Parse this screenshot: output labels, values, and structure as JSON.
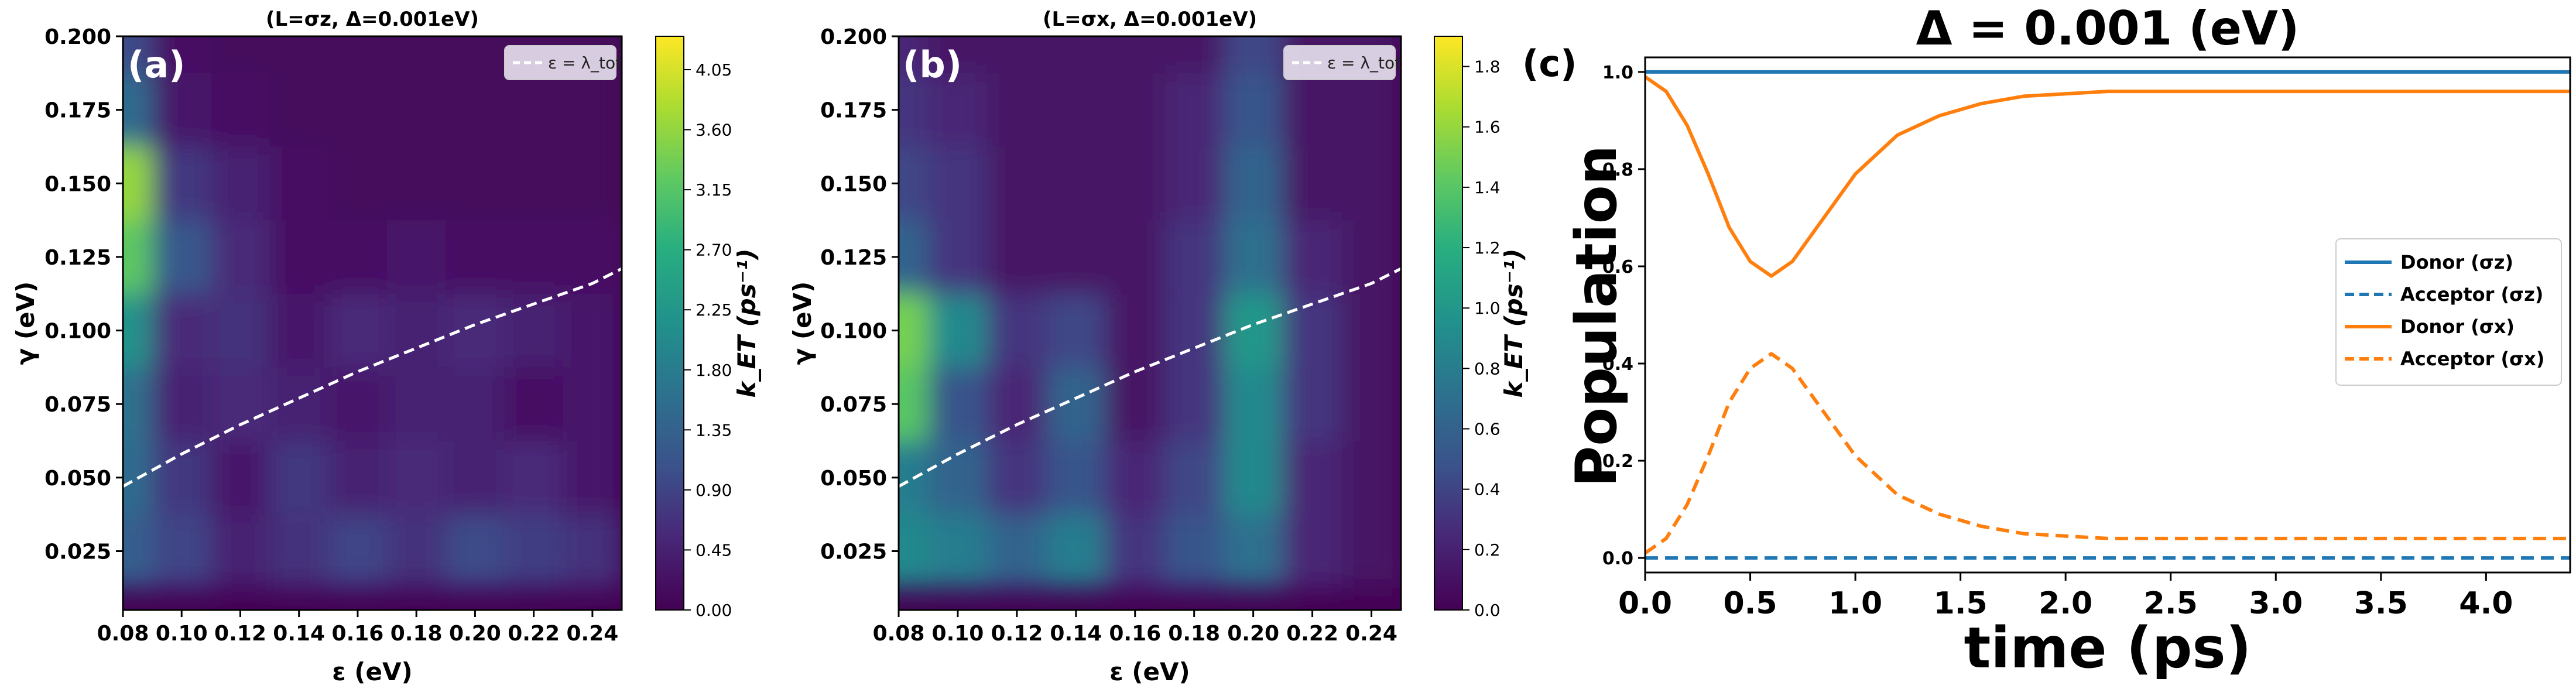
{
  "chart_data": [
    {
      "panel": "(a)",
      "type": "heatmap",
      "title": "(L=σz, Δ=0.001eV)",
      "xlabel": "ε (eV)",
      "ylabel": "γ (eV)",
      "xlim": [
        0.08,
        0.25
      ],
      "ylim": [
        0.005,
        0.2
      ],
      "x_ticks": [
        "0.08",
        "0.10",
        "0.12",
        "0.14",
        "0.16",
        "0.18",
        "0.20",
        "0.22",
        "0.24"
      ],
      "y_ticks": [
        "0.025",
        "0.050",
        "0.075",
        "0.100",
        "0.125",
        "0.150",
        "0.175",
        "0.200"
      ],
      "colorbar": {
        "label": "k_ET (ps⁻¹)",
        "min": 0,
        "max": 4.3,
        "ticks": [
          "0.00",
          "0.45",
          "0.90",
          "1.35",
          "1.80",
          "2.25",
          "2.70",
          "3.15",
          "3.60",
          "4.05"
        ]
      },
      "legend": {
        "label": "ε = λ_tot",
        "position": "top-right"
      },
      "curve": {
        "name": "ε = λ_tot",
        "x": [
          0.08,
          0.1,
          0.12,
          0.14,
          0.16,
          0.18,
          0.2,
          0.22,
          0.24,
          0.25
        ],
        "y": [
          0.047,
          0.058,
          0.068,
          0.077,
          0.086,
          0.094,
          0.102,
          0.109,
          0.116,
          0.121
        ]
      },
      "grid": {
        "x": [
          0.08,
          0.1,
          0.12,
          0.14,
          0.16,
          0.18,
          0.2,
          0.22,
          0.24
        ],
        "y": [
          0.025,
          0.05,
          0.075,
          0.1,
          0.125,
          0.15,
          0.175,
          0.2
        ],
        "z": [
          [
            1.3,
            0.9,
            0.4,
            0.6,
            0.9,
            0.6,
            1.0,
            0.8,
            0.6
          ],
          [
            1.5,
            0.7,
            0.3,
            0.7,
            0.4,
            0.5,
            0.4,
            0.5,
            0.3
          ],
          [
            1.6,
            0.4,
            0.5,
            0.4,
            0.3,
            0.4,
            0.4,
            0.2,
            0.3
          ],
          [
            2.2,
            0.5,
            0.6,
            0.3,
            0.5,
            0.4,
            0.5,
            0.4,
            0.3
          ],
          [
            3.2,
            1.2,
            0.5,
            0.2,
            0.2,
            0.3,
            0.2,
            0.2,
            0.2
          ],
          [
            3.6,
            0.7,
            0.4,
            0.2,
            0.1,
            0.1,
            0.1,
            0.1,
            0.1
          ],
          [
            1.5,
            0.3,
            0.2,
            0.1,
            0.1,
            0.1,
            0.1,
            0.1,
            0.1
          ],
          [
            1.0,
            0.2,
            0.1,
            0.1,
            0.1,
            0.1,
            0.1,
            0.1,
            0.1
          ]
        ]
      }
    },
    {
      "panel": "(b)",
      "type": "heatmap",
      "title": "(L=σx, Δ=0.001eV)",
      "xlabel": "ε (eV)",
      "ylabel": "γ (eV)",
      "xlim": [
        0.08,
        0.25
      ],
      "ylim": [
        0.005,
        0.2
      ],
      "x_ticks": [
        "0.08",
        "0.10",
        "0.12",
        "0.14",
        "0.16",
        "0.18",
        "0.20",
        "0.22",
        "0.24"
      ],
      "y_ticks": [
        "0.025",
        "0.050",
        "0.075",
        "0.100",
        "0.125",
        "0.150",
        "0.175",
        "0.200"
      ],
      "colorbar": {
        "label": "k_ET (ps⁻¹)",
        "min": 0,
        "max": 1.9,
        "ticks": [
          "0.0",
          "0.2",
          "0.4",
          "0.6",
          "0.8",
          "1.0",
          "1.2",
          "1.4",
          "1.6",
          "1.8"
        ]
      },
      "legend": {
        "label": "ε = λ_tot",
        "position": "top-right"
      },
      "curve": {
        "name": "ε = λ_tot",
        "x": [
          0.08,
          0.1,
          0.12,
          0.14,
          0.16,
          0.18,
          0.2,
          0.22,
          0.24,
          0.25
        ],
        "y": [
          0.047,
          0.058,
          0.068,
          0.077,
          0.086,
          0.094,
          0.102,
          0.109,
          0.116,
          0.121
        ]
      },
      "grid": {
        "x": [
          0.08,
          0.1,
          0.12,
          0.14,
          0.16,
          0.18,
          0.2,
          0.22,
          0.24
        ],
        "y": [
          0.025,
          0.05,
          0.075,
          0.1,
          0.125,
          0.15,
          0.175,
          0.2
        ],
        "z": [
          [
            0.9,
            0.8,
            0.6,
            0.8,
            0.3,
            0.5,
            0.7,
            0.2,
            0.1
          ],
          [
            0.8,
            0.6,
            0.3,
            0.5,
            0.2,
            0.4,
            0.9,
            0.2,
            0.1
          ],
          [
            1.4,
            0.5,
            0.2,
            0.6,
            0.1,
            0.3,
            0.9,
            0.3,
            0.1
          ],
          [
            1.5,
            0.9,
            0.3,
            0.4,
            0.1,
            0.3,
            1.0,
            0.3,
            0.1
          ],
          [
            0.6,
            0.3,
            0.1,
            0.1,
            0.1,
            0.3,
            0.7,
            0.2,
            0.1
          ],
          [
            0.4,
            0.3,
            0.1,
            0.1,
            0.1,
            0.2,
            0.6,
            0.1,
            0.1
          ],
          [
            0.3,
            0.2,
            0.1,
            0.1,
            0.1,
            0.2,
            0.5,
            0.1,
            0.1
          ],
          [
            0.2,
            0.1,
            0.1,
            0.1,
            0.1,
            0.1,
            0.4,
            0.1,
            0.1
          ]
        ]
      }
    },
    {
      "panel": "(c)",
      "type": "line",
      "title": "Δ = 0.001 (eV)",
      "xlabel": "time (ps)",
      "ylabel": "Population",
      "xlim": [
        0,
        4.4
      ],
      "ylim": [
        -0.03,
        1.03
      ],
      "x_ticks": [
        "0.0",
        "0.5",
        "1.0",
        "1.5",
        "2.0",
        "2.5",
        "3.0",
        "3.5",
        "4.0"
      ],
      "y_ticks": [
        "0.0",
        "0.2",
        "0.4",
        "0.6",
        "0.8",
        "1.0"
      ],
      "legend_position": "center-right",
      "grid": false,
      "series": [
        {
          "name": "Donor (σz)",
          "color": "#1f77b4",
          "dash": "solid",
          "x": [
            0,
            4.4
          ],
          "y": [
            1.0,
            1.0
          ]
        },
        {
          "name": "Acceptor (σz)",
          "color": "#1f77b4",
          "dash": "dashed",
          "x": [
            0,
            4.4
          ],
          "y": [
            0.0,
            0.0
          ]
        },
        {
          "name": "Donor (σx)",
          "color": "#ff7f0e",
          "dash": "solid",
          "x": [
            0,
            0.1,
            0.2,
            0.3,
            0.4,
            0.5,
            0.6,
            0.7,
            0.8,
            0.9,
            1.0,
            1.1,
            1.2,
            1.4,
            1.6,
            1.8,
            2.0,
            2.2,
            2.5,
            3.0,
            3.5,
            4.0,
            4.4
          ],
          "y": [
            0.99,
            0.96,
            0.89,
            0.79,
            0.68,
            0.61,
            0.58,
            0.61,
            0.67,
            0.73,
            0.79,
            0.83,
            0.87,
            0.91,
            0.935,
            0.95,
            0.955,
            0.96,
            0.96,
            0.96,
            0.96,
            0.96,
            0.96
          ]
        },
        {
          "name": "Acceptor (σx)",
          "color": "#ff7f0e",
          "dash": "dashed",
          "x": [
            0,
            0.1,
            0.2,
            0.3,
            0.4,
            0.5,
            0.6,
            0.7,
            0.8,
            0.9,
            1.0,
            1.1,
            1.2,
            1.4,
            1.6,
            1.8,
            2.0,
            2.2,
            2.5,
            3.0,
            3.5,
            4.0,
            4.4
          ],
          "y": [
            0.01,
            0.04,
            0.11,
            0.21,
            0.32,
            0.39,
            0.42,
            0.39,
            0.33,
            0.27,
            0.21,
            0.17,
            0.13,
            0.09,
            0.065,
            0.05,
            0.045,
            0.04,
            0.04,
            0.04,
            0.04,
            0.04,
            0.04
          ]
        }
      ]
    }
  ]
}
